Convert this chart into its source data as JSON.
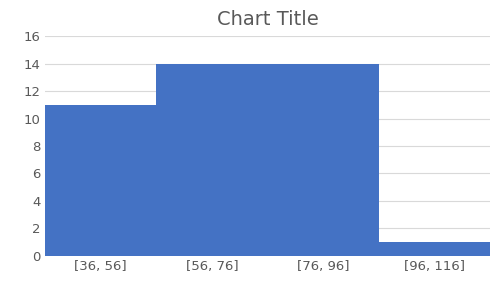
{
  "title": "Chart Title",
  "categories": [
    "[36, 56]",
    "[56, 76]",
    "[76, 96]",
    "[96, 116]"
  ],
  "values": [
    11,
    14,
    14,
    1
  ],
  "bar_color": "#4472C4",
  "ylim": [
    0,
    16
  ],
  "yticks": [
    0,
    2,
    4,
    6,
    8,
    10,
    12,
    14,
    16
  ],
  "title_fontsize": 14,
  "tick_fontsize": 9.5,
  "background_color": "#ffffff",
  "grid_color": "#d9d9d9"
}
